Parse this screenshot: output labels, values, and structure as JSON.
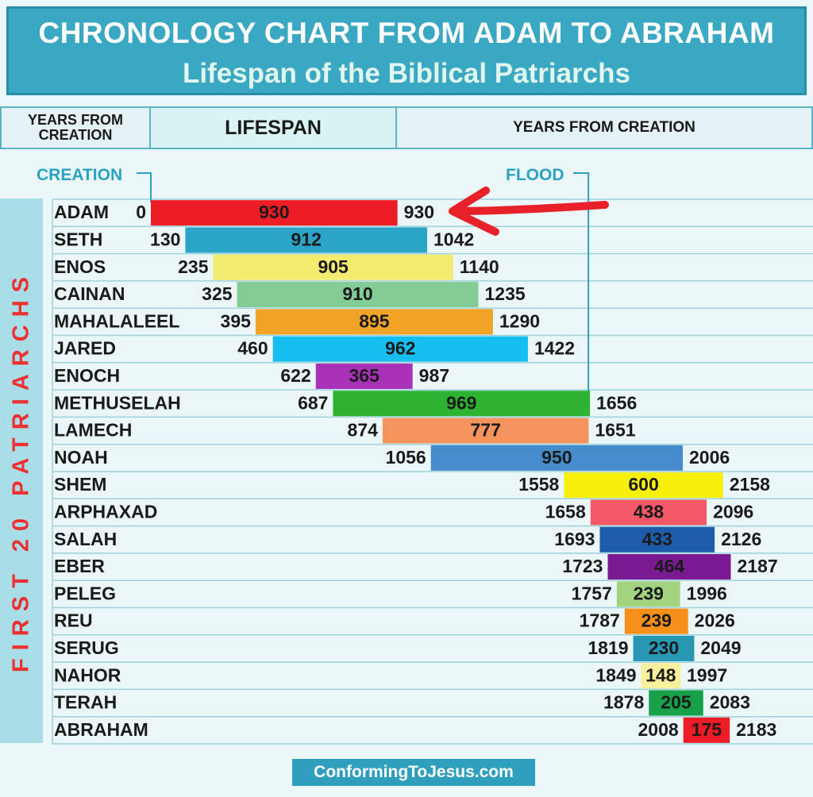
{
  "chart_data": {
    "type": "bar",
    "title": "CHRONOLOGY CHART FROM ADAM TO ABRAHAM",
    "subtitle": "Lifespan of the Biblical Patriarchs",
    "header": {
      "years_from_creation_left": "YEARS FROM CREATION",
      "lifespan": "LIFESPAN",
      "years_from_creation_right": "YEARS FROM CREATION"
    },
    "markers": {
      "creation_label": "CREATION",
      "creation_year": 0,
      "flood_label": "FLOOD",
      "flood_year": 1656
    },
    "side_label": "FIRST 20 PATRIARCHS",
    "footer": "ConformingToJesus.com",
    "patriarchs": [
      {
        "name": "ADAM",
        "start": 0,
        "lifespan": 930,
        "end": 930,
        "color": "#ee1c24"
      },
      {
        "name": "SETH",
        "start": 130,
        "lifespan": 912,
        "end": 1042,
        "color": "#2aa5c8"
      },
      {
        "name": "ENOS",
        "start": 235,
        "lifespan": 905,
        "end": 1140,
        "color": "#f4ec70"
      },
      {
        "name": "CAINAN",
        "start": 325,
        "lifespan": 910,
        "end": 1235,
        "color": "#84cc96"
      },
      {
        "name": "MAHALALEEL",
        "start": 395,
        "lifespan": 895,
        "end": 1290,
        "color": "#f0a324"
      },
      {
        "name": "JARED",
        "start": 460,
        "lifespan": 962,
        "end": 1422,
        "color": "#16bef0"
      },
      {
        "name": "ENOCH",
        "start": 622,
        "lifespan": 365,
        "end": 987,
        "color": "#a831b8"
      },
      {
        "name": "METHUSELAH",
        "start": 687,
        "lifespan": 969,
        "end": 1656,
        "color": "#2eb232"
      },
      {
        "name": "LAMECH",
        "start": 874,
        "lifespan": 777,
        "end": 1651,
        "color": "#f4935c"
      },
      {
        "name": "NOAH",
        "start": 1056,
        "lifespan": 950,
        "end": 2006,
        "color": "#448ccc"
      },
      {
        "name": "SHEM",
        "start": 1558,
        "lifespan": 600,
        "end": 2158,
        "color": "#f6f00a"
      },
      {
        "name": "ARPHAXAD",
        "start": 1658,
        "lifespan": 438,
        "end": 2096,
        "color": "#f45866"
      },
      {
        "name": "SALAH",
        "start": 1693,
        "lifespan": 433,
        "end": 2126,
        "color": "#1c5caa"
      },
      {
        "name": "EBER",
        "start": 1723,
        "lifespan": 464,
        "end": 2187,
        "color": "#7a1a92"
      },
      {
        "name": "PELEG",
        "start": 1757,
        "lifespan": 239,
        "end": 1996,
        "color": "#a2d480"
      },
      {
        "name": "REU",
        "start": 1787,
        "lifespan": 239,
        "end": 2026,
        "color": "#f69018"
      },
      {
        "name": "SERUG",
        "start": 1819,
        "lifespan": 230,
        "end": 2049,
        "color": "#2698b4"
      },
      {
        "name": "NAHOR",
        "start": 1849,
        "lifespan": 148,
        "end": 1997,
        "color": "#f8f09c"
      },
      {
        "name": "TERAH",
        "start": 1878,
        "lifespan": 205,
        "end": 2083,
        "color": "#17a24a"
      },
      {
        "name": "ABRAHAM",
        "start": 2008,
        "lifespan": 175,
        "end": 2183,
        "color": "#ee1c24"
      }
    ]
  }
}
